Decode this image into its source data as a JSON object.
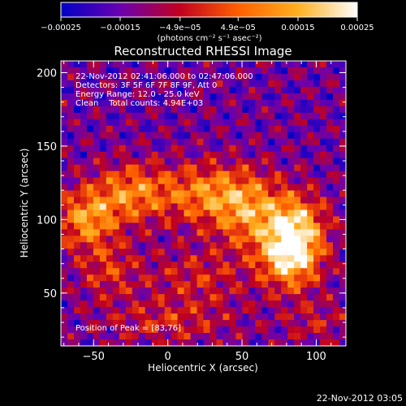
{
  "chart_data": {
    "type": "heatmap",
    "title": "Reconstructed RHESSI Image",
    "xlabel": "Heliocentric X (arcsec)",
    "ylabel": "Heliocentric Y (arcsec)",
    "xlim": [
      -72,
      120
    ],
    "ylim": [
      14,
      208
    ],
    "x_ticks": [
      -50,
      0,
      50,
      100
    ],
    "y_ticks": [
      50,
      100,
      150,
      200
    ],
    "x_tick_labels": [
      "−50",
      "0",
      "50",
      "100"
    ],
    "y_tick_labels": [
      "50",
      "100",
      "150",
      "200"
    ],
    "grid": false,
    "peak": {
      "x": 83,
      "y": 76
    },
    "colorbar": {
      "range": [
        -0.00025,
        0.00025
      ],
      "tick_values": [
        -0.00025,
        -0.00015,
        -4.9e-05,
        4.9e-05,
        0.00015,
        0.00025
      ],
      "tick_labels": [
        "−0.00025",
        "−0.00015",
        "−4.9e−05",
        "4.9e−05",
        "0.00015",
        "0.00025"
      ],
      "unit_label": "(photons cm⁻² s⁻¹ asec⁻²)",
      "colors": [
        "#0000c8",
        "#6a00b0",
        "#c00020",
        "#ff6000",
        "#ffb020",
        "#ffffff"
      ]
    },
    "annotations": [
      "22-Nov-2012 02:41:06.000 to 02:47:06.000",
      "Detectors: 3F 5F 6F 7F 8F 9F, Att 0",
      "Energy Range: 12.0 - 25.0 keV",
      "Clean    Total counts: 4.94E+03",
      "Position of Peak = [83,76]"
    ],
    "timestamp": "22-Nov-2012 03:05",
    "brightness_blobs": [
      {
        "x": 83,
        "y": 77,
        "sx": 14,
        "sy": 16,
        "amp": 1.0
      },
      {
        "x": 88,
        "y": 100,
        "sx": 14,
        "sy": 14,
        "amp": 0.45
      },
      {
        "x": -55,
        "y": 100,
        "sx": 14,
        "sy": 14,
        "amp": 0.62
      },
      {
        "x": -25,
        "y": 118,
        "sx": 18,
        "sy": 14,
        "amp": 0.55
      },
      {
        "x": 25,
        "y": 118,
        "sx": 22,
        "sy": 14,
        "amp": 0.52
      },
      {
        "x": 55,
        "y": 105,
        "sx": 18,
        "sy": 18,
        "amp": 0.55
      },
      {
        "x": -40,
        "y": 65,
        "sx": 14,
        "sy": 14,
        "amp": 0.32
      },
      {
        "x": 20,
        "y": 60,
        "sx": 24,
        "sy": 14,
        "amp": 0.28
      },
      {
        "x": 0,
        "y": 30,
        "sx": 30,
        "sy": 10,
        "amp": 0.28
      },
      {
        "x": 100,
        "y": 30,
        "sx": 16,
        "sy": 10,
        "amp": 0.22
      }
    ]
  }
}
